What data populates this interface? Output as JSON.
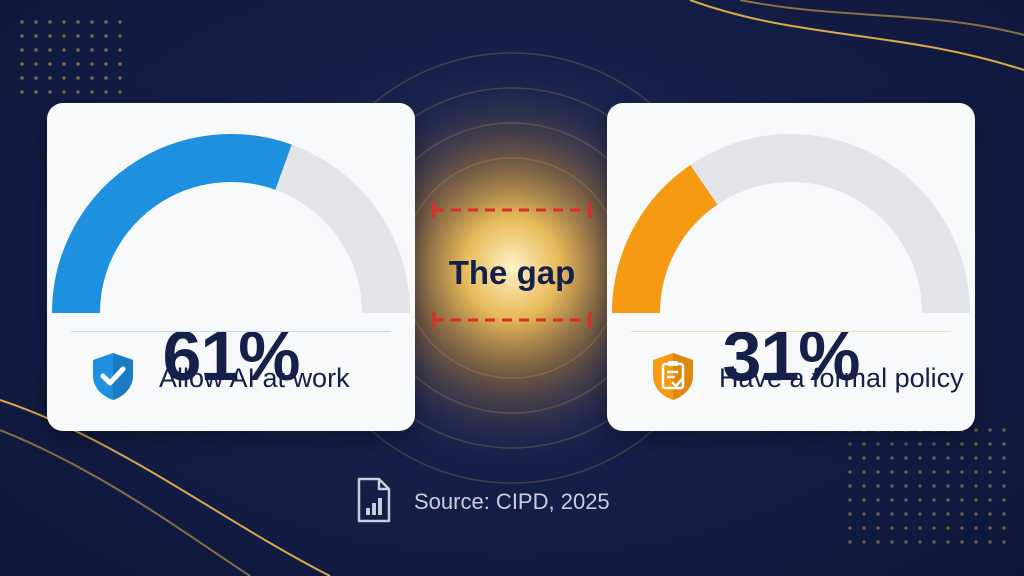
{
  "chart_data": {
    "type": "gauge",
    "series": [
      {
        "value": 61,
        "display": "61%",
        "label": "Allow AI at work",
        "color": "#1e90e0",
        "icon": "shield-check-icon"
      },
      {
        "value": 31,
        "display": "31%",
        "label": "Have a formal policy",
        "color": "#f59a12",
        "icon": "clipboard-check-icon"
      }
    ],
    "range": [
      0,
      100
    ],
    "annotation": "The gap",
    "source": "Source: CIPD, 2025"
  },
  "colors": {
    "background": "#15204a",
    "track": "#e3e5ea",
    "text": "#14204a",
    "gap_line": "#e02b2b",
    "glow": "#f2b640"
  }
}
